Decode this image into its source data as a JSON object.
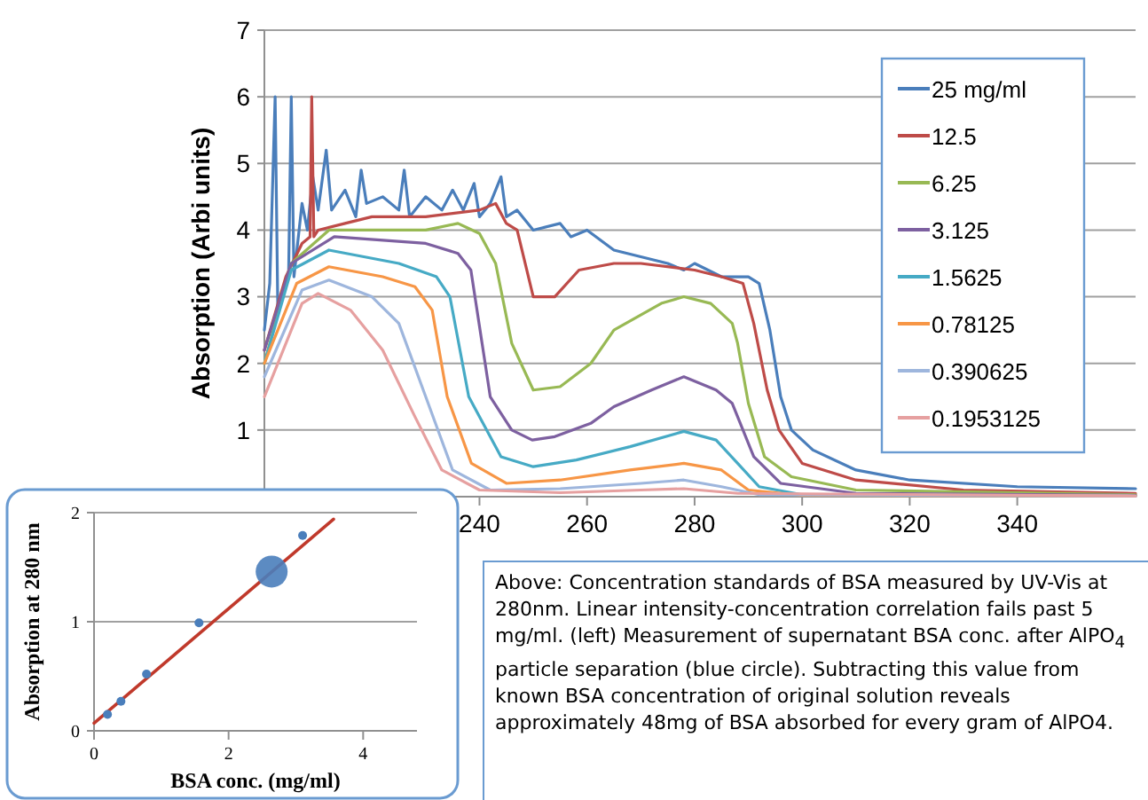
{
  "chart_data": [
    {
      "type": "line",
      "ylabel": "Absorption (Arbi units)",
      "xlim": [
        200,
        362
      ],
      "xticks": [
        240,
        260,
        280,
        300,
        320,
        340
      ],
      "ylim": [
        0,
        7
      ],
      "yticks": [
        1,
        2,
        3,
        4,
        5,
        6,
        7
      ],
      "grid": "y",
      "legend": "top right",
      "annotations": [
        "Above: Concentration standards of BSA measured by UV-Vis at 280nm. Linear intensity-concentration correlation fails past 5 mg/ml. (left) Measurement of supernatant BSA conc. after AlPO$_{4}$ particle separation (blue circle). Subtracting this value from known BSA concentration of original solution reveals approximately 48mg of BSA absorbed for every gram of AlPO4."
      ],
      "series": [
        {
          "name": "25 mg/ml",
          "color": "#4a7ebb",
          "x": [
            200,
            201,
            202,
            202.5,
            204.5,
            205,
            205.5,
            207,
            208,
            209,
            210,
            211.5,
            212.5,
            215,
            217,
            218,
            219,
            222,
            225,
            226,
            227,
            230,
            233,
            235,
            237,
            239,
            240,
            242,
            244,
            245,
            247,
            250,
            255,
            257,
            260,
            265,
            270,
            275,
            278,
            280,
            285,
            290,
            292,
            294,
            296,
            298,
            302,
            310,
            320,
            340,
            362
          ],
          "values": [
            2.5,
            3.2,
            6,
            2.8,
            3.3,
            6,
            3.3,
            4.4,
            4.0,
            4.8,
            4.3,
            5.2,
            4.3,
            4.6,
            4.2,
            4.9,
            4.4,
            4.5,
            4.3,
            4.9,
            4.2,
            4.5,
            4.3,
            4.6,
            4.3,
            4.7,
            4.2,
            4.4,
            4.8,
            4.2,
            4.3,
            4.0,
            4.1,
            3.9,
            4.0,
            3.7,
            3.6,
            3.5,
            3.4,
            3.5,
            3.3,
            3.3,
            3.2,
            2.5,
            1.5,
            1.0,
            0.7,
            0.4,
            0.25,
            0.15,
            0.12
          ]
        },
        {
          "name": "12.5",
          "color": "#be4b48",
          "x": [
            200,
            204,
            207,
            208.5,
            208.8,
            209.2,
            210,
            215,
            220,
            230,
            240,
            243,
            245,
            247,
            250,
            254,
            258.5,
            265,
            270,
            280,
            285,
            289,
            291,
            293.5,
            295.7,
            300,
            310,
            330,
            362
          ],
          "values": [
            2.2,
            3.3,
            3.8,
            3.9,
            6,
            3.9,
            4.0,
            4.1,
            4.2,
            4.2,
            4.3,
            4.4,
            4.1,
            4.0,
            3.0,
            3.0,
            3.4,
            3.5,
            3.5,
            3.4,
            3.3,
            3.2,
            2.6,
            1.6,
            1.0,
            0.5,
            0.25,
            0.1,
            0.05
          ]
        },
        {
          "name": "6.25",
          "color": "#98b954",
          "x": [
            200,
            205,
            212,
            230,
            236,
            240,
            243,
            246,
            250,
            255,
            260.7,
            265,
            273.8,
            278,
            283,
            287,
            288,
            290,
            293,
            298,
            310,
            362
          ],
          "values": [
            2.0,
            3.5,
            4.0,
            4.0,
            4.1,
            3.95,
            3.5,
            2.3,
            1.6,
            1.65,
            2.0,
            2.5,
            2.9,
            3.0,
            2.9,
            2.6,
            2.3,
            1.4,
            0.6,
            0.3,
            0.1,
            0.03
          ]
        },
        {
          "name": "3.125",
          "color": "#7d60a0",
          "x": [
            200,
            205,
            213,
            230,
            236,
            238.4,
            242,
            246,
            249.8,
            254,
            260.7,
            265,
            272,
            278,
            284,
            287,
            291,
            296,
            310,
            362
          ],
          "values": [
            2.2,
            3.5,
            3.9,
            3.8,
            3.65,
            3.4,
            1.5,
            1.0,
            0.85,
            0.9,
            1.1,
            1.35,
            1.6,
            1.8,
            1.6,
            1.4,
            0.6,
            0.2,
            0.05,
            0.02
          ]
        },
        {
          "name": "1.5625",
          "color": "#46aac5",
          "x": [
            200,
            205,
            212,
            225,
            232,
            234.5,
            238,
            244,
            250,
            258,
            268,
            278,
            284,
            288,
            292,
            300,
            362
          ],
          "values": [
            2.0,
            3.4,
            3.7,
            3.5,
            3.3,
            3.0,
            1.5,
            0.6,
            0.45,
            0.55,
            0.75,
            0.98,
            0.85,
            0.5,
            0.15,
            0.03,
            0.01
          ]
        },
        {
          "name": "0.78125",
          "color": "#f79646",
          "x": [
            200,
            206,
            212,
            222,
            228,
            231.2,
            234,
            238.5,
            245,
            255,
            268,
            278,
            285,
            290,
            300,
            362
          ],
          "values": [
            2.0,
            3.2,
            3.45,
            3.3,
            3.15,
            2.8,
            1.5,
            0.5,
            0.2,
            0.25,
            0.4,
            0.5,
            0.4,
            0.1,
            0.02,
            0.01
          ]
        },
        {
          "name": "0.390625",
          "color": "#9eb6dd",
          "x": [
            200,
            207,
            212,
            220,
            225,
            230,
            235,
            242,
            255,
            270,
            278,
            285,
            292,
            362
          ],
          "values": [
            1.8,
            3.1,
            3.25,
            3.0,
            2.6,
            1.5,
            0.4,
            0.1,
            0.12,
            0.2,
            0.25,
            0.15,
            0.03,
            0.01
          ]
        },
        {
          "name": "0.1953125",
          "color": "#e6a0a0",
          "x": [
            200,
            207,
            210,
            216,
            222,
            228,
            233,
            240,
            255,
            270,
            278,
            288,
            362
          ],
          "values": [
            1.5,
            2.9,
            3.05,
            2.8,
            2.2,
            1.2,
            0.4,
            0.1,
            0.06,
            0.1,
            0.12,
            0.05,
            0.01
          ]
        }
      ]
    },
    {
      "type": "scatter",
      "xlabel": "BSA conc. (mg/ml)",
      "ylabel": "Absorption at 280 nm",
      "xlim": [
        0,
        4.8
      ],
      "xticks": [
        0,
        2,
        4
      ],
      "ylim": [
        0,
        2
      ],
      "yticks": [
        0,
        1,
        2
      ],
      "grid": "y",
      "series": [
        {
          "type": "line",
          "color": "#c0392b",
          "x": [
            0,
            3.56
          ],
          "values": [
            0.07,
            1.94
          ]
        },
        {
          "color": "#4a7ebb",
          "marker": "circle",
          "x": [
            0.2,
            0.4,
            0.78,
            1.56,
            3.1
          ],
          "values": [
            0.15,
            0.27,
            0.52,
            0.99,
            1.79
          ]
        },
        {
          "type": "bubble",
          "color": "#4a7ebb",
          "x": [
            2.64
          ],
          "values": [
            1.46
          ],
          "sizes": [
            1
          ]
        }
      ]
    }
  ]
}
